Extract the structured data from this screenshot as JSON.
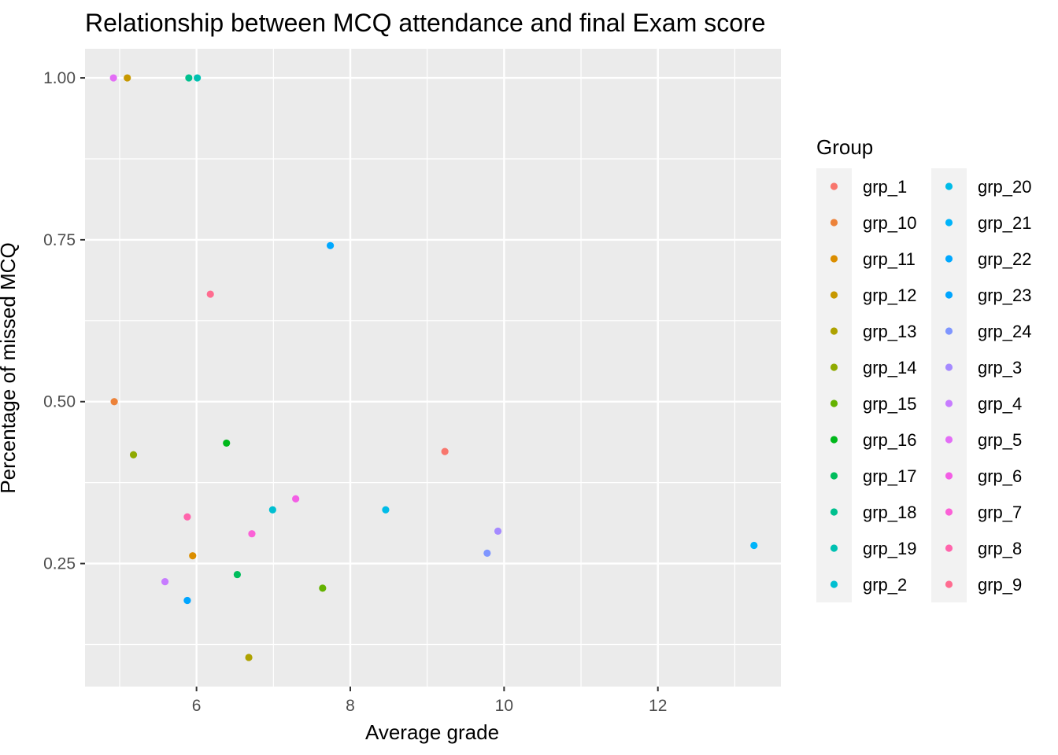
{
  "chart_data": {
    "type": "scatter",
    "title": "Relationship between MCQ attendance and final Exam score",
    "xlabel": "Average grade",
    "ylabel": "Percentage of missed MCQ",
    "xlim": [
      4.55,
      13.6
    ],
    "ylim": [
      0.06,
      1.045
    ],
    "x_ticks": [
      6,
      8,
      10,
      12
    ],
    "x_tick_labels": [
      "6",
      "8",
      "10",
      "12"
    ],
    "y_ticks": [
      0.25,
      0.5,
      0.75,
      1.0
    ],
    "y_tick_labels": [
      "0.25",
      "0.50",
      "0.75",
      "1.00"
    ],
    "grid": true,
    "legend": {
      "title": "Group",
      "placement": "right",
      "columns": 2
    },
    "series": [
      {
        "name": "grp_1",
        "color": "#F8766D",
        "points": [
          [
            9.23,
            0.423
          ]
        ]
      },
      {
        "name": "grp_10",
        "color": "#EC8239",
        "points": [
          [
            4.93,
            0.5
          ]
        ]
      },
      {
        "name": "grp_11",
        "color": "#DB8E00",
        "points": [
          [
            5.95,
            0.262
          ]
        ]
      },
      {
        "name": "grp_12",
        "color": "#C79800",
        "points": [
          [
            5.1,
            1.0
          ]
        ]
      },
      {
        "name": "grp_13",
        "color": "#AEA200",
        "points": [
          [
            6.68,
            0.105
          ]
        ]
      },
      {
        "name": "grp_14",
        "color": "#8FAA00",
        "points": [
          [
            5.18,
            0.418
          ]
        ]
      },
      {
        "name": "grp_15",
        "color": "#64B200",
        "points": [
          [
            7.64,
            0.212
          ]
        ]
      },
      {
        "name": "grp_16",
        "color": "#00B81B",
        "points": [
          [
            6.39,
            0.436
          ]
        ]
      },
      {
        "name": "grp_17",
        "color": "#00BD5C",
        "points": [
          [
            6.53,
            0.233
          ]
        ]
      },
      {
        "name": "grp_18",
        "color": "#00C08E",
        "points": [
          [
            5.9,
            1.0
          ]
        ]
      },
      {
        "name": "grp_19",
        "color": "#00C1B2",
        "points": [
          [
            6.01,
            1.0
          ]
        ]
      },
      {
        "name": "grp_2",
        "color": "#00BFD1",
        "points": [
          [
            6.99,
            0.333
          ]
        ]
      },
      {
        "name": "grp_20",
        "color": "#00BCE8",
        "points": [
          [
            8.46,
            0.333
          ]
        ]
      },
      {
        "name": "grp_21",
        "color": "#00B4FA",
        "points": [
          [
            13.25,
            0.278
          ]
        ]
      },
      {
        "name": "grp_22",
        "color": "#00A8FF",
        "points": [
          [
            7.74,
            0.741
          ]
        ]
      },
      {
        "name": "grp_23",
        "color": "#00A5FF",
        "points": [
          [
            5.88,
            0.193
          ]
        ]
      },
      {
        "name": "grp_24",
        "color": "#7F96FF",
        "points": [
          [
            9.78,
            0.266
          ]
        ]
      },
      {
        "name": "grp_3",
        "color": "#A58AFF",
        "points": [
          [
            9.92,
            0.3
          ]
        ]
      },
      {
        "name": "grp_4",
        "color": "#C77CFF",
        "points": [
          [
            5.59,
            0.222
          ]
        ]
      },
      {
        "name": "grp_5",
        "color": "#E36EF6",
        "points": [
          [
            4.92,
            1.0
          ]
        ]
      },
      {
        "name": "grp_6",
        "color": "#F35EE5",
        "points": [
          [
            7.29,
            0.35
          ]
        ]
      },
      {
        "name": "grp_7",
        "color": "#FB61D7",
        "points": [
          [
            6.72,
            0.296
          ]
        ]
      },
      {
        "name": "grp_8",
        "color": "#FF65AC",
        "points": [
          [
            5.88,
            0.322
          ]
        ]
      },
      {
        "name": "grp_9",
        "color": "#FF6C90",
        "points": [
          [
            6.18,
            0.666
          ]
        ]
      }
    ]
  }
}
